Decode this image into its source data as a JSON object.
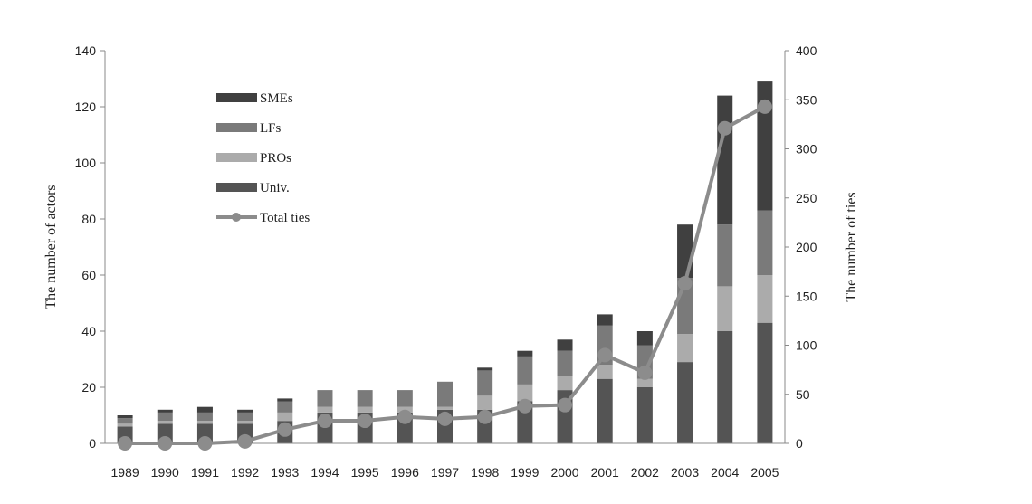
{
  "chart_data": {
    "type": "bar",
    "stacked": true,
    "categories": [
      "1989",
      "1990",
      "1991",
      "1992",
      "1993",
      "1994",
      "1995",
      "1996",
      "1997",
      "1998",
      "1999",
      "2000",
      "2001",
      "2002",
      "2003",
      "2004",
      "2005"
    ],
    "series": [
      {
        "name": "Univ.",
        "axis": "left",
        "color": "#545454",
        "values": [
          6,
          7,
          7,
          7,
          8,
          11,
          11,
          11,
          12,
          12,
          15,
          19,
          23,
          20,
          29,
          40,
          43
        ]
      },
      {
        "name": "PROs",
        "axis": "left",
        "color": "#ababab",
        "values": [
          1,
          1,
          1,
          1,
          3,
          2,
          2,
          2,
          1,
          5,
          6,
          5,
          5,
          3,
          10,
          16,
          17
        ]
      },
      {
        "name": "LFs",
        "axis": "left",
        "color": "#7a7a7a",
        "values": [
          2,
          3,
          3,
          3,
          4,
          6,
          6,
          6,
          9,
          9,
          10,
          9,
          14,
          12,
          20,
          22,
          23
        ]
      },
      {
        "name": "SMEs",
        "axis": "left",
        "color": "#404040",
        "values": [
          1,
          1,
          2,
          1,
          1,
          0,
          0,
          0,
          0,
          1,
          2,
          4,
          4,
          5,
          19,
          46,
          46
        ]
      },
      {
        "name": "Total ties",
        "type": "line",
        "axis": "right",
        "color": "#8c8c8c",
        "values": [
          0,
          0,
          0,
          2,
          14,
          23,
          23,
          27,
          25,
          27,
          38,
          39,
          90,
          72,
          163,
          321,
          343
        ]
      }
    ],
    "legend_order": [
      "SMEs",
      "LFs",
      "PROs",
      "Univ.",
      "Total ties"
    ],
    "ylabel": "The number of actors",
    "y2label": "The number of ties",
    "ylim": [
      0,
      140
    ],
    "y2lim": [
      0,
      400
    ],
    "yticks": [
      0,
      20,
      40,
      60,
      80,
      100,
      120,
      140
    ],
    "y2ticks": [
      0,
      50,
      100,
      150,
      200,
      250,
      300,
      350,
      400
    ],
    "grid": false,
    "legend_position": "top-left"
  }
}
